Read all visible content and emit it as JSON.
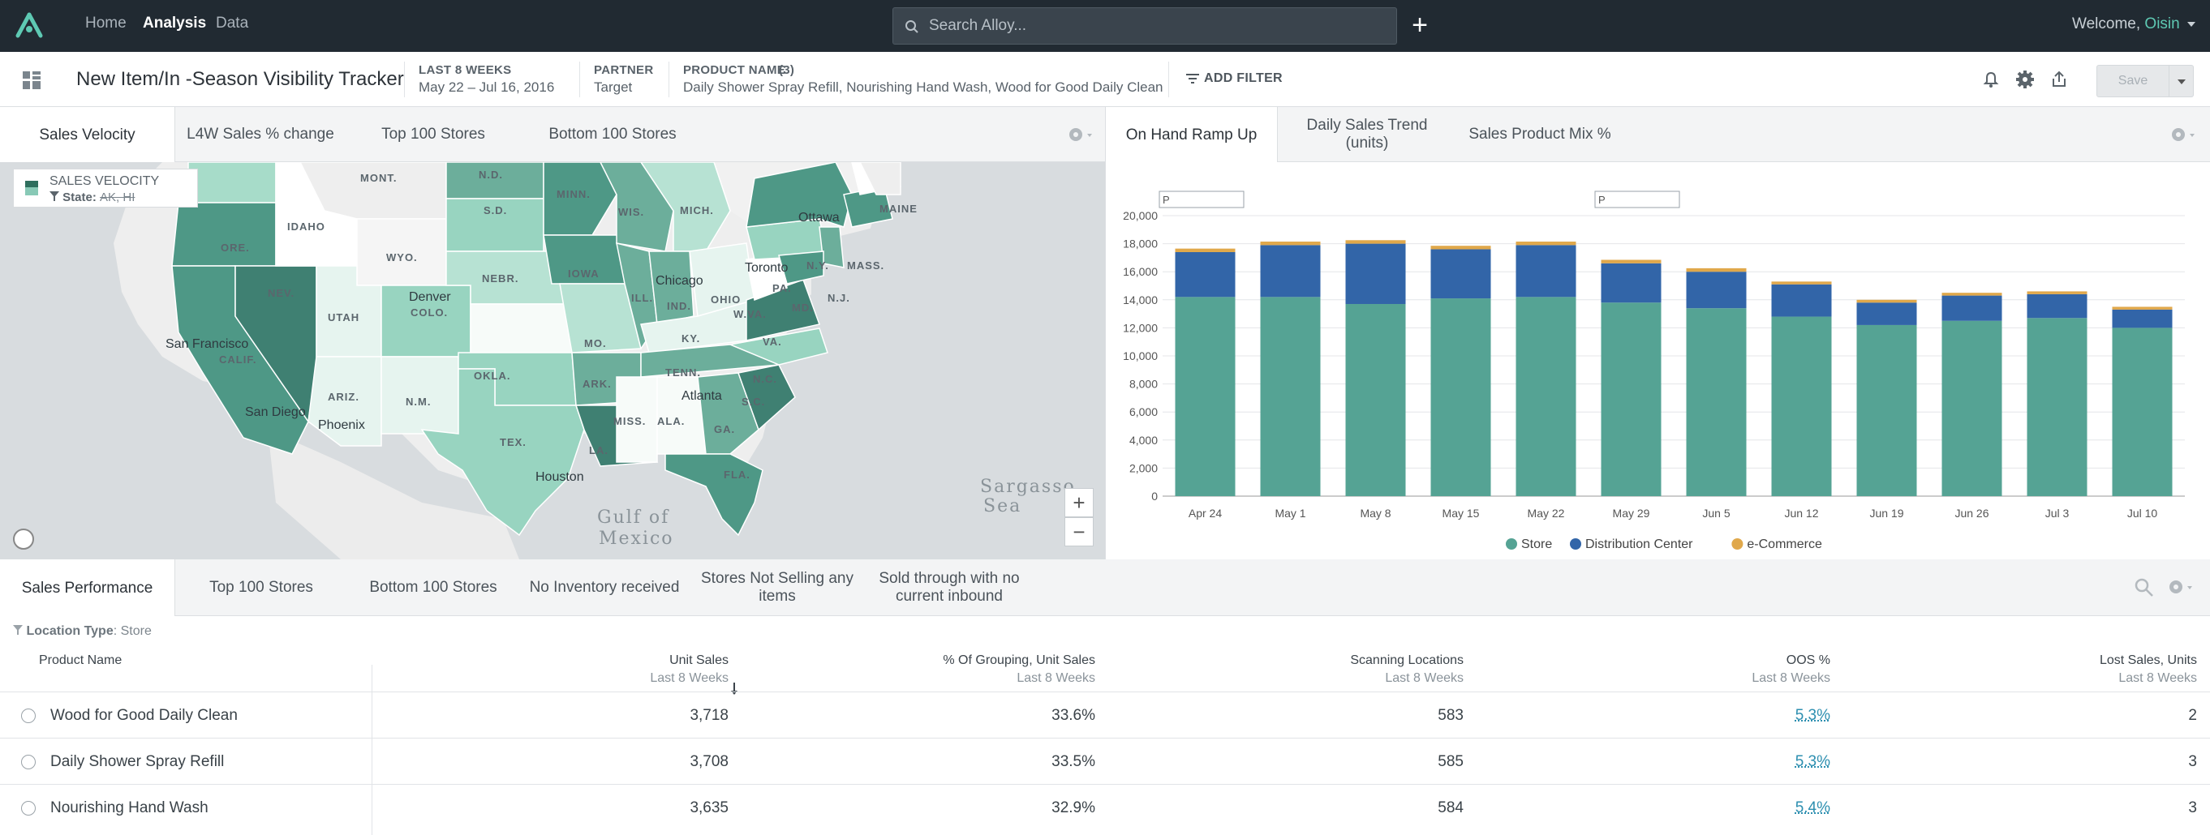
{
  "nav": {
    "home": "Home",
    "analysis": "Analysis",
    "data": "Data",
    "search_placeholder": "Search Alloy...",
    "add": "+",
    "welcome": "Welcome,",
    "user": "Oisin"
  },
  "header": {
    "title": "New Item/In -Season Visibility Tracker",
    "period_label": "LAST 8 WEEKS",
    "period_value": "May 22 – Jul 16, 2016",
    "partner_label": "PARTNER",
    "partner_value": "Target",
    "product_label": "PRODUCT NAME",
    "product_count": "(3)",
    "product_value": "Daily Shower Spray Refill, Nourishing Hand Wash, Wood for Good Daily Clean",
    "add_filter": "ADD FILTER",
    "save": "Save"
  },
  "map_tabs": [
    "Sales Velocity",
    "L4W Sales % change",
    "Top 100 Stores",
    "Bottom 100 Stores"
  ],
  "chart_tabs": [
    "On Hand Ramp Up",
    "Daily Sales Trend (units)",
    "Sales Product Mix %"
  ],
  "map": {
    "legend_title": "SALES VELOCITY",
    "legend_filter_label": "State:",
    "legend_filter_value": "AK, HI",
    "labels": [
      "MONT.",
      "N.D.",
      "MINN.",
      "S.D.",
      "WIS.",
      "MICH.",
      "Ottawa",
      "MAINE",
      "ORE.",
      "IDAHO",
      "WYO.",
      "NEBR.",
      "IOWA",
      "Toronto",
      "N.Y.",
      "MASS.",
      "NEV.",
      "Denver",
      "COLO.",
      "Chicago",
      "ILL.",
      "IND.",
      "OHIO",
      "PA.",
      "N.J.",
      "San Francisco",
      "UTAH",
      "W.VA.",
      "MD.",
      "CALIF.",
      "MO.",
      "KY.",
      "VA.",
      "OKLA.",
      "ARK.",
      "TENN.",
      "N.C.",
      "ARIZ.",
      "N.M.",
      "Atlanta",
      "S.C.",
      "San Diego",
      "Phoenix",
      "MISS.",
      "ALA.",
      "GA.",
      "TEX.",
      "LA.",
      "FLA.",
      "Houston",
      "Gulf of",
      "Mexico",
      "Sargasso",
      "Sea"
    ],
    "zoom_in": "+",
    "zoom_out": "−"
  },
  "chart_data": {
    "type": "bar",
    "stacked": true,
    "categories": [
      "Apr 24",
      "May 1",
      "May 8",
      "May 15",
      "May 22",
      "May 29",
      "Jun 5",
      "Jun 12",
      "Jun 19",
      "Jun 26",
      "Jul 3",
      "Jul 10"
    ],
    "series": [
      {
        "name": "Store",
        "color": "#55a394",
        "values": [
          14200,
          14200,
          13700,
          14100,
          14200,
          13800,
          13400,
          12800,
          12200,
          12500,
          12700,
          12000
        ]
      },
      {
        "name": "Distribution Center",
        "color": "#3265a8",
        "values": [
          3200,
          3700,
          4300,
          3500,
          3700,
          2800,
          2600,
          2300,
          1600,
          1800,
          1700,
          1300
        ]
      },
      {
        "name": "e-Commerce",
        "color": "#e0a84b",
        "values": [
          250,
          250,
          250,
          250,
          250,
          250,
          250,
          200,
          200,
          200,
          200,
          200
        ]
      }
    ],
    "ylim": [
      0,
      20000
    ],
    "yticks": [
      "0",
      "2,000",
      "4,000",
      "6,000",
      "8,000",
      "10,000",
      "12,000",
      "14,000",
      "16,000",
      "18,000",
      "20,000"
    ],
    "annotation_marker": "P",
    "legend_position": "bottom"
  },
  "table_tabs": [
    "Sales Performance",
    "Top 100 Stores",
    "Bottom 100 Stores",
    "No Inventory received",
    "Stores Not Selling any items",
    "Sold through with no current inbound"
  ],
  "table": {
    "filter_label": "Location Type",
    "filter_value": ": Store",
    "columns": [
      {
        "label": "Product Name",
        "sub": ""
      },
      {
        "label": "Unit Sales",
        "sub": "Last 8 Weeks"
      },
      {
        "label": "% Of Grouping, Unit Sales",
        "sub": "Last 8 Weeks"
      },
      {
        "label": "Scanning Locations",
        "sub": "Last 8 Weeks"
      },
      {
        "label": "OOS %",
        "sub": "Last 8 Weeks"
      },
      {
        "label": "Lost Sales, Units",
        "sub": "Last 8 Weeks"
      }
    ],
    "rows": [
      {
        "name": "Wood for Good Daily Clean",
        "unit_sales": "3,718",
        "pct": "33.6%",
        "scanning": "583",
        "oos": "5.3%",
        "lost": "2"
      },
      {
        "name": "Daily Shower Spray Refill",
        "unit_sales": "3,708",
        "pct": "33.5%",
        "scanning": "585",
        "oos": "5.3%",
        "lost": "3"
      },
      {
        "name": "Nourishing Hand Wash",
        "unit_sales": "3,635",
        "pct": "32.9%",
        "scanning": "584",
        "oos": "5.4%",
        "lost": "3"
      }
    ]
  }
}
